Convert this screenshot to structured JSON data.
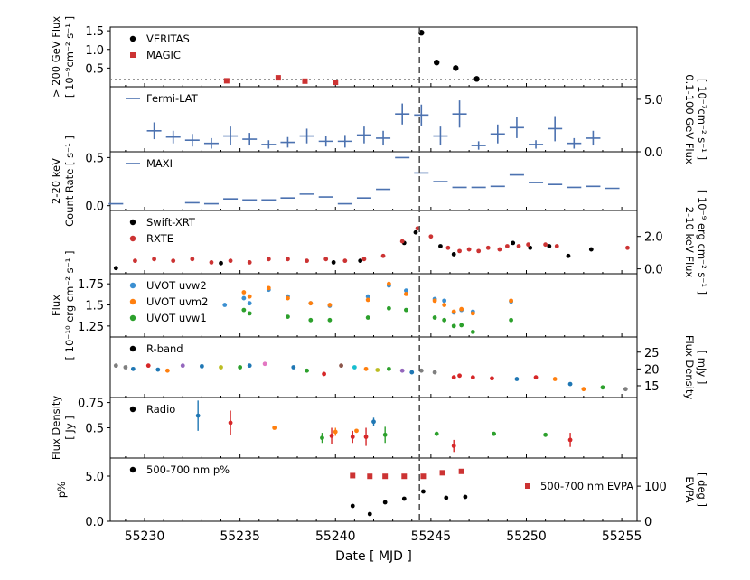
{
  "chart_data": {
    "type": "scatter",
    "xlabel": "Date [ MJD ]",
    "xlim": [
      55228.2,
      55255.8
    ],
    "xticks": [
      55230,
      55235,
      55240,
      55245,
      55250,
      55255
    ],
    "flare_marker_mjd": 55244.4,
    "panels": [
      {
        "id": "veritas-magic",
        "ylabel": [
          "> 200 GeV Flux",
          "[ 10⁻⁹cm⁻² s⁻¹ ]"
        ],
        "ylim": [
          0.0,
          1.6
        ],
        "yticks": [
          0.5,
          1.0,
          1.5
        ],
        "baseline": 0.2,
        "legend": [
          "VERITAS",
          "MAGIC"
        ],
        "series": [
          {
            "name": "VERITAS",
            "color": "#000000",
            "marker": "circle",
            "x": [
              55244.5,
              55245.3,
              55246.3,
              55247.4
            ],
            "y": [
              1.45,
              0.65,
              0.5,
              0.21
            ]
          },
          {
            "name": "MAGIC",
            "color": "#cc3333",
            "marker": "square",
            "x": [
              55234.3,
              55237.0,
              55238.4,
              55240.0
            ],
            "y": [
              0.16,
              0.24,
              0.15,
              0.12
            ]
          }
        ]
      },
      {
        "id": "fermi",
        "right_ylabel": [
          "0.1-100 GeV Flux",
          "[ 10⁻⁷cm⁻² s⁻¹ ]"
        ],
        "ylim": [
          0.0,
          6.2
        ],
        "right_yticks": [
          0.0,
          5.0
        ],
        "legend": [
          "Fermi-LAT"
        ],
        "series": [
          {
            "name": "Fermi-LAT",
            "color": "#4c72b0",
            "marker": "cross",
            "x": [
              55230.5,
              55231.5,
              55232.5,
              55233.5,
              55234.5,
              55235.5,
              55236.5,
              55237.5,
              55238.5,
              55239.5,
              55240.5,
              55241.5,
              55242.5,
              55243.5,
              55244.5,
              55245.5,
              55246.5,
              55247.5,
              55248.5,
              55249.5,
              55250.5,
              55251.5,
              55252.5,
              55253.5
            ],
            "y": [
              2.0,
              1.4,
              1.1,
              0.8,
              1.5,
              1.2,
              0.7,
              0.9,
              1.5,
              1.0,
              1.0,
              1.6,
              1.3,
              3.6,
              3.5,
              1.5,
              3.6,
              0.6,
              1.7,
              2.3,
              0.7,
              2.2,
              0.8,
              1.3
            ],
            "yerr": [
              0.8,
              0.6,
              0.6,
              0.5,
              0.9,
              0.6,
              0.4,
              0.5,
              0.7,
              0.5,
              0.6,
              0.8,
              0.7,
              1.0,
              1.0,
              0.9,
              1.3,
              0.4,
              0.9,
              1.0,
              0.4,
              1.2,
              0.5,
              0.7
            ]
          }
        ]
      },
      {
        "id": "maxi",
        "ylabel": [
          "2-20 keV",
          "Count Rate [ s⁻¹ ]"
        ],
        "ylim": [
          -0.05,
          0.56
        ],
        "yticks": [
          0.0,
          0.5
        ],
        "legend": [
          "MAXI"
        ],
        "series": [
          {
            "name": "MAXI",
            "color": "#4c72b0",
            "marker": "cross",
            "x": [
              55228.5,
              55232.5,
              55233.5,
              55234.5,
              55235.5,
              55236.5,
              55237.5,
              55238.5,
              55239.5,
              55240.5,
              55241.5,
              55242.5,
              55243.5,
              55244.5,
              55245.5,
              55246.5,
              55247.5,
              55248.5,
              55249.5,
              55250.5,
              55251.5,
              55252.5,
              55253.5,
              55254.5
            ],
            "y": [
              0.02,
              0.03,
              0.02,
              0.07,
              0.06,
              0.06,
              0.08,
              0.12,
              0.09,
              0.02,
              0.08,
              0.17,
              0.5,
              0.34,
              0.25,
              0.19,
              0.19,
              0.2,
              0.32,
              0.24,
              0.22,
              0.19,
              0.2,
              0.18
            ]
          }
        ]
      },
      {
        "id": "xray",
        "right_ylabel": [
          "2-10 keV Flux",
          "[ 10⁻⁹ erg cm⁻² s⁻¹ ]"
        ],
        "ylim": [
          -0.3,
          3.6
        ],
        "right_yticks": [
          0.0,
          2.0
        ],
        "legend": [
          "Swift-XRT",
          "RXTE"
        ],
        "series": [
          {
            "name": "Swift-XRT",
            "color": "#000000",
            "marker": "dot",
            "x": [
              55228.5,
              55234.0,
              55239.9,
              55241.3,
              55243.6,
              55244.2,
              55245.5,
              55246.2,
              55249.3,
              55250.2,
              55251.2,
              55252.2,
              55253.4
            ],
            "y": [
              0.05,
              0.35,
              0.4,
              0.5,
              1.6,
              2.25,
              1.4,
              0.9,
              1.6,
              1.3,
              1.4,
              0.8,
              1.2
            ]
          },
          {
            "name": "RXTE",
            "color": "#cc3333",
            "marker": "dot",
            "x": [
              55229.5,
              55230.5,
              55231.5,
              55232.5,
              55233.5,
              55234.5,
              55235.5,
              55236.5,
              55237.5,
              55238.5,
              55239.5,
              55240.5,
              55241.5,
              55242.5,
              55243.5,
              55244.3,
              55245.0,
              55245.9,
              55246.5,
              55247.0,
              55247.5,
              55248.0,
              55248.6,
              55249.0,
              55249.6,
              55250.1,
              55251.0,
              55251.6,
              55255.3
            ],
            "y": [
              0.5,
              0.6,
              0.5,
              0.6,
              0.4,
              0.5,
              0.4,
              0.6,
              0.6,
              0.5,
              0.6,
              0.5,
              0.6,
              0.8,
              1.7,
              2.5,
              2.0,
              1.3,
              1.1,
              1.2,
              1.1,
              1.3,
              1.2,
              1.4,
              1.4,
              1.5,
              1.5,
              1.4,
              1.3
            ]
          }
        ]
      },
      {
        "id": "uvot",
        "ylabel": [
          "Flux",
          "[ 10⁻¹⁰ erg cm⁻² s⁻¹ ]"
        ],
        "ylim": [
          1.12,
          1.87
        ],
        "yticks": [
          1.25,
          1.5,
          1.75
        ],
        "legend": [
          "UVOT uvw2",
          "UVOT uvm2",
          "UVOT uvw1"
        ],
        "series": [
          {
            "name": "UVOT uvw2",
            "color": "#3b8fd1",
            "marker": "dot",
            "x": [
              55234.2,
              55235.2,
              55235.5,
              55236.5,
              55237.5,
              55238.7,
              55239.7,
              55241.7,
              55242.8,
              55243.7,
              55245.2,
              55245.7,
              55246.2,
              55246.6,
              55247.2,
              55249.2
            ],
            "y": [
              1.5,
              1.58,
              1.52,
              1.68,
              1.6,
              1.52,
              1.49,
              1.6,
              1.73,
              1.67,
              1.57,
              1.55,
              1.41,
              1.44,
              1.42,
              1.54
            ]
          },
          {
            "name": "UVOT uvm2",
            "color": "#ff7f0e",
            "marker": "dot",
            "x": [
              55235.2,
              55235.5,
              55236.5,
              55237.5,
              55238.7,
              55239.7,
              55241.7,
              55242.8,
              55243.7,
              55245.2,
              55245.7,
              55246.2,
              55246.6,
              55247.2,
              55249.2
            ],
            "y": [
              1.65,
              1.6,
              1.7,
              1.58,
              1.52,
              1.5,
              1.56,
              1.75,
              1.63,
              1.55,
              1.5,
              1.42,
              1.45,
              1.4,
              1.55
            ]
          },
          {
            "name": "UVOT uvw1",
            "color": "#2ca02c",
            "marker": "dot",
            "x": [
              55235.2,
              55235.5,
              55237.5,
              55238.7,
              55239.7,
              55241.7,
              55242.8,
              55243.7,
              55245.2,
              55245.7,
              55246.2,
              55246.6,
              55247.2,
              55249.2
            ],
            "y": [
              1.44,
              1.4,
              1.36,
              1.32,
              1.32,
              1.35,
              1.46,
              1.44,
              1.35,
              1.32,
              1.25,
              1.26,
              1.18,
              1.32
            ]
          }
        ]
      },
      {
        "id": "rband",
        "right_ylabel": [
          "Flux Density",
          "[ mJy ]"
        ],
        "ylim": [
          11.5,
          29.5
        ],
        "right_yticks": [
          15,
          20,
          25
        ],
        "legend": [
          "R-band"
        ],
        "series": [
          {
            "name": "R-band",
            "color": "#000000",
            "marker": "dot",
            "points": [
              {
                "x": 55228.5,
                "y": 21.0,
                "c": "#7f7f7f"
              },
              {
                "x": 55229.0,
                "y": 20.5,
                "c": "#7f7f7f"
              },
              {
                "x": 55229.4,
                "y": 20.0,
                "c": "#1f77b4"
              },
              {
                "x": 55230.2,
                "y": 21.0,
                "c": "#d62728"
              },
              {
                "x": 55230.7,
                "y": 19.8,
                "c": "#1f77b4"
              },
              {
                "x": 55231.2,
                "y": 19.5,
                "c": "#ff7f0e"
              },
              {
                "x": 55232.0,
                "y": 21.0,
                "c": "#9467bd"
              },
              {
                "x": 55233.0,
                "y": 20.8,
                "c": "#1f77b4"
              },
              {
                "x": 55234.0,
                "y": 20.5,
                "c": "#bcbd22"
              },
              {
                "x": 55235.0,
                "y": 20.5,
                "c": "#2ca02c"
              },
              {
                "x": 55235.5,
                "y": 21.0,
                "c": "#1f77b4"
              },
              {
                "x": 55236.3,
                "y": 21.5,
                "c": "#e377c2"
              },
              {
                "x": 55237.8,
                "y": 20.5,
                "c": "#1f77b4"
              },
              {
                "x": 55238.5,
                "y": 19.5,
                "c": "#2ca02c"
              },
              {
                "x": 55239.4,
                "y": 18.5,
                "c": "#d62728"
              },
              {
                "x": 55240.3,
                "y": 21.0,
                "c": "#8c564b"
              },
              {
                "x": 55241.0,
                "y": 20.5,
                "c": "#17becf"
              },
              {
                "x": 55241.6,
                "y": 20.0,
                "c": "#ff7f0e"
              },
              {
                "x": 55242.2,
                "y": 19.7,
                "c": "#bcbd22"
              },
              {
                "x": 55242.8,
                "y": 20.0,
                "c": "#2ca02c"
              },
              {
                "x": 55243.5,
                "y": 19.5,
                "c": "#9467bd"
              },
              {
                "x": 55244.0,
                "y": 19.0,
                "c": "#1f77b4"
              },
              {
                "x": 55244.5,
                "y": 19.5,
                "c": "#7f7f7f"
              },
              {
                "x": 55245.2,
                "y": 19.0,
                "c": "#7f7f7f"
              },
              {
                "x": 55246.2,
                "y": 17.5,
                "c": "#d62728"
              },
              {
                "x": 55246.5,
                "y": 18.0,
                "c": "#d62728"
              },
              {
                "x": 55247.2,
                "y": 17.5,
                "c": "#d62728"
              },
              {
                "x": 55248.2,
                "y": 17.2,
                "c": "#d62728"
              },
              {
                "x": 55249.5,
                "y": 17.0,
                "c": "#1f77b4"
              },
              {
                "x": 55250.5,
                "y": 17.5,
                "c": "#d62728"
              },
              {
                "x": 55251.5,
                "y": 17.0,
                "c": "#ff7f0e"
              },
              {
                "x": 55252.3,
                "y": 15.5,
                "c": "#1f77b4"
              },
              {
                "x": 55253.0,
                "y": 14.0,
                "c": "#ff7f0e"
              },
              {
                "x": 55254.0,
                "y": 14.5,
                "c": "#2ca02c"
              },
              {
                "x": 55255.2,
                "y": 14.0,
                "c": "#7f7f7f"
              }
            ]
          }
        ]
      },
      {
        "id": "radio",
        "ylabel": [
          "Flux Density",
          "[ Jy ]"
        ],
        "ylim": [
          0.2,
          0.8
        ],
        "yticks": [
          0.5,
          0.75
        ],
        "legend": [
          "Radio"
        ],
        "series": [
          {
            "name": "Radio",
            "color": "#000000",
            "marker": "dot",
            "points": [
              {
                "x": 55232.8,
                "y": 0.62,
                "yerr": 0.15,
                "c": "#1f77b4"
              },
              {
                "x": 55234.5,
                "y": 0.55,
                "yerr": 0.12,
                "c": "#d62728"
              },
              {
                "x": 55236.8,
                "y": 0.5,
                "yerr": 0.0,
                "c": "#ff7f0e"
              },
              {
                "x": 55239.3,
                "y": 0.4,
                "yerr": 0.05,
                "c": "#2ca02c"
              },
              {
                "x": 55239.8,
                "y": 0.42,
                "yerr": 0.08,
                "c": "#d62728"
              },
              {
                "x": 55240.0,
                "y": 0.46,
                "yerr": 0.04,
                "c": "#ff7f0e"
              },
              {
                "x": 55240.9,
                "y": 0.41,
                "yerr": 0.06,
                "c": "#d62728"
              },
              {
                "x": 55241.1,
                "y": 0.47,
                "yerr": 0.0,
                "c": "#ff7f0e"
              },
              {
                "x": 55241.6,
                "y": 0.41,
                "yerr": 0.09,
                "c": "#d62728"
              },
              {
                "x": 55242.0,
                "y": 0.56,
                "yerr": 0.04,
                "c": "#1f77b4"
              },
              {
                "x": 55242.6,
                "y": 0.43,
                "yerr": 0.08,
                "c": "#2ca02c"
              },
              {
                "x": 55245.3,
                "y": 0.44,
                "yerr": 0.0,
                "c": "#2ca02c"
              },
              {
                "x": 55246.2,
                "y": 0.32,
                "yerr": 0.06,
                "c": "#d62728"
              },
              {
                "x": 55248.3,
                "y": 0.44,
                "yerr": 0.0,
                "c": "#2ca02c"
              },
              {
                "x": 55251.0,
                "y": 0.43,
                "yerr": 0.0,
                "c": "#2ca02c"
              },
              {
                "x": 55252.3,
                "y": 0.38,
                "yerr": 0.07,
                "c": "#d62728"
              }
            ]
          }
        ]
      },
      {
        "id": "optical-pol",
        "ylabel": [
          "p%"
        ],
        "right_ylabel": [
          "EVPA",
          "[ deg ]"
        ],
        "ylim": [
          0.0,
          7.0
        ],
        "yticks": [
          0.0,
          5.0
        ],
        "right_ylim": [
          0,
          180
        ],
        "right_yticks": [
          0,
          100
        ],
        "legend": [
          "500-700 nm p%",
          "500-700 nm EVPA"
        ],
        "series": [
          {
            "name": "500-700 nm p%",
            "color": "#000000",
            "marker": "dot",
            "x": [
              55240.9,
              55241.8,
              55242.6,
              55243.6,
              55244.6,
              55245.8,
              55246.8
            ],
            "y": [
              1.7,
              0.8,
              2.1,
              2.5,
              3.3,
              2.6,
              2.7
            ]
          },
          {
            "name": "500-700 nm EVPA",
            "color": "#cc3333",
            "marker": "square",
            "x": [
              55240.9,
              55241.8,
              55242.6,
              55243.6,
              55244.6,
              55245.6,
              55246.6
            ],
            "y": [
              130,
              128,
              128,
              128,
              128,
              138,
              142
            ]
          }
        ]
      }
    ]
  }
}
